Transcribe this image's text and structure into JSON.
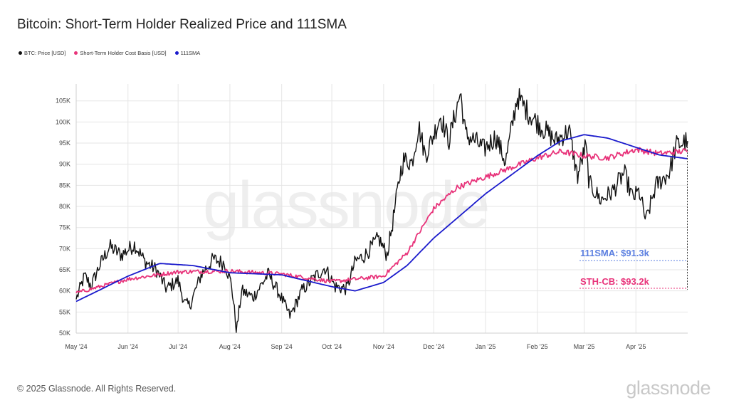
{
  "header": {
    "title": "Bitcoin: Short-Term Holder Realized Price and 111SMA"
  },
  "legend": [
    {
      "label": "BTC: Price [USD]",
      "color": "#111111"
    },
    {
      "label": "Short-Term Holder Cost Basis [USD]",
      "color": "#e8337a"
    },
    {
      "label": "111SMA",
      "color": "#1a1acc"
    }
  ],
  "annotations": {
    "sma_label": "111SMA: $91.3k",
    "sth_label": "STH-CB: $93.2k"
  },
  "footer": {
    "copyright": "© 2025 Glassnode. All Rights Reserved.",
    "logo_text": "glassnode"
  },
  "watermark": "glassnode",
  "colors": {
    "price": "#111111",
    "sth": "#e8337a",
    "sma": "#1a1acc",
    "sma_label": "#5b7fe0",
    "sth_label": "#e8337a",
    "grid": "#e6e6e6"
  },
  "chart_data": {
    "type": "line",
    "title": "Bitcoin: Short-Term Holder Realized Price and 111SMA",
    "ylim": [
      50000,
      109000
    ],
    "xlim": [
      "2024-05-01",
      "2025-05-02"
    ],
    "y_ticks": [
      50000,
      55000,
      60000,
      65000,
      70000,
      75000,
      80000,
      85000,
      90000,
      95000,
      100000,
      105000
    ],
    "y_tick_labels": [
      "50K",
      "55K",
      "60K",
      "65K",
      "70K",
      "75K",
      "80K",
      "85K",
      "90K",
      "95K",
      "100K",
      "105K"
    ],
    "x_ticks": [
      "2024-05-01",
      "2024-06-01",
      "2024-07-01",
      "2024-08-01",
      "2024-09-01",
      "2024-10-01",
      "2024-11-01",
      "2024-12-01",
      "2025-01-01",
      "2025-02-01",
      "2025-03-01",
      "2025-04-01"
    ],
    "x_tick_labels": [
      "May '24",
      "Jun '24",
      "Jul '24",
      "Aug '24",
      "Sep '24",
      "Oct '24",
      "Nov '24",
      "Dec '24",
      "Jan '25",
      "Feb '25",
      "Mar '25",
      "Apr '25"
    ],
    "grid": true,
    "legend_position": "top-left",
    "series": [
      {
        "name": "BTC: Price [USD]",
        "x": [
          "2024-05-01",
          "2024-05-06",
          "2024-05-10",
          "2024-05-15",
          "2024-05-21",
          "2024-05-28",
          "2024-06-05",
          "2024-06-11",
          "2024-06-18",
          "2024-06-24",
          "2024-07-01",
          "2024-07-05",
          "2024-07-08",
          "2024-07-15",
          "2024-07-22",
          "2024-07-29",
          "2024-08-02",
          "2024-08-05",
          "2024-08-08",
          "2024-08-15",
          "2024-08-24",
          "2024-08-31",
          "2024-09-06",
          "2024-09-13",
          "2024-09-20",
          "2024-09-27",
          "2024-10-03",
          "2024-10-10",
          "2024-10-15",
          "2024-10-21",
          "2024-10-29",
          "2024-11-03",
          "2024-11-06",
          "2024-11-11",
          "2024-11-13",
          "2024-11-18",
          "2024-11-22",
          "2024-11-26",
          "2024-12-01",
          "2024-12-05",
          "2024-12-10",
          "2024-12-17",
          "2024-12-20",
          "2024-12-26",
          "2024-12-31",
          "2025-01-07",
          "2025-01-13",
          "2025-01-20",
          "2025-01-27",
          "2025-02-03",
          "2025-02-12",
          "2025-02-20",
          "2025-02-25",
          "2025-03-02",
          "2025-03-04",
          "2025-03-11",
          "2025-03-18",
          "2025-03-25",
          "2025-03-30",
          "2025-04-03",
          "2025-04-07",
          "2025-04-13",
          "2025-04-21",
          "2025-04-25",
          "2025-05-02"
        ],
        "values": [
          58000,
          63500,
          61200,
          66000,
          70500,
          68500,
          71000,
          67000,
          65000,
          60500,
          62500,
          57000,
          56500,
          64000,
          67500,
          66500,
          61500,
          50500,
          60000,
          58500,
          64000,
          59000,
          54000,
          60000,
          63000,
          65500,
          61000,
          60500,
          67000,
          68500,
          72500,
          68500,
          75000,
          88000,
          91000,
          90500,
          99000,
          92000,
          97000,
          101500,
          95500,
          107000,
          97000,
          95500,
          93500,
          96500,
          90500,
          106000,
          102000,
          99000,
          95500,
          98000,
          87000,
          94500,
          85500,
          81500,
          83500,
          88000,
          82000,
          83500,
          76500,
          85000,
          88000,
          94500,
          95500
        ]
      },
      {
        "name": "Short-Term Holder Cost Basis [USD]",
        "x": [
          "2024-05-01",
          "2024-06-01",
          "2024-07-01",
          "2024-08-01",
          "2024-09-01",
          "2024-10-01",
          "2024-11-01",
          "2024-11-15",
          "2024-12-01",
          "2024-12-15",
          "2025-01-01",
          "2025-01-15",
          "2025-02-01",
          "2025-02-15",
          "2025-03-01",
          "2025-03-15",
          "2025-04-01",
          "2025-04-15",
          "2025-05-02"
        ],
        "values": [
          59500,
          62800,
          64500,
          64700,
          64000,
          62200,
          63500,
          69000,
          79500,
          84500,
          87000,
          89000,
          91500,
          93000,
          92000,
          91500,
          93500,
          92500,
          93200
        ]
      },
      {
        "name": "111SMA",
        "x": [
          "2024-05-01",
          "2024-06-01",
          "2024-06-20",
          "2024-07-10",
          "2024-08-01",
          "2024-09-01",
          "2024-10-01",
          "2024-10-15",
          "2024-11-01",
          "2024-11-15",
          "2024-12-01",
          "2025-01-01",
          "2025-02-01",
          "2025-02-15",
          "2025-03-01",
          "2025-03-15",
          "2025-04-01",
          "2025-04-15",
          "2025-05-02"
        ],
        "values": [
          57500,
          63500,
          66500,
          66000,
          64300,
          63800,
          61000,
          60000,
          62000,
          66000,
          72500,
          83000,
          92000,
          95500,
          97000,
          96200,
          94000,
          92200,
          91300
        ]
      }
    ]
  }
}
